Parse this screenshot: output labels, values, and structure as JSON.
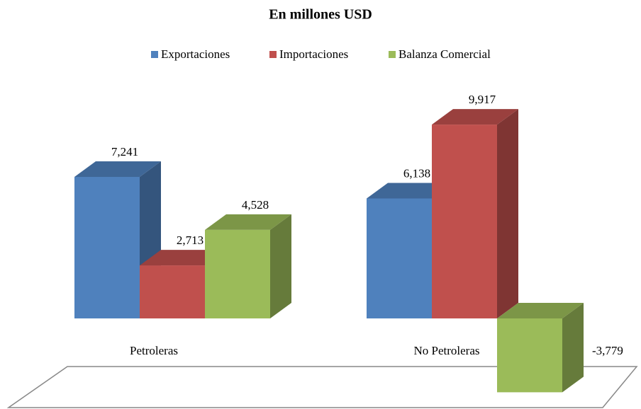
{
  "chart_data": {
    "type": "bar3d",
    "title": "En millones USD",
    "categories": [
      "Petroleras",
      "No Petroleras"
    ],
    "series": [
      {
        "name": "Exportaciones",
        "color": "#4f81bd",
        "values": [
          7241,
          6138
        ],
        "value_labels": [
          "7,241",
          "6,138"
        ]
      },
      {
        "name": "Importaciones",
        "color": "#c0504d",
        "values": [
          2713,
          9917
        ],
        "value_labels": [
          "2,713",
          "9,917"
        ]
      },
      {
        "name": "Balanza Comercial",
        "color": "#9bbb59",
        "values": [
          4528,
          -3779
        ],
        "value_labels": [
          "4,528",
          "-3,779"
        ]
      }
    ],
    "legend": "top"
  }
}
